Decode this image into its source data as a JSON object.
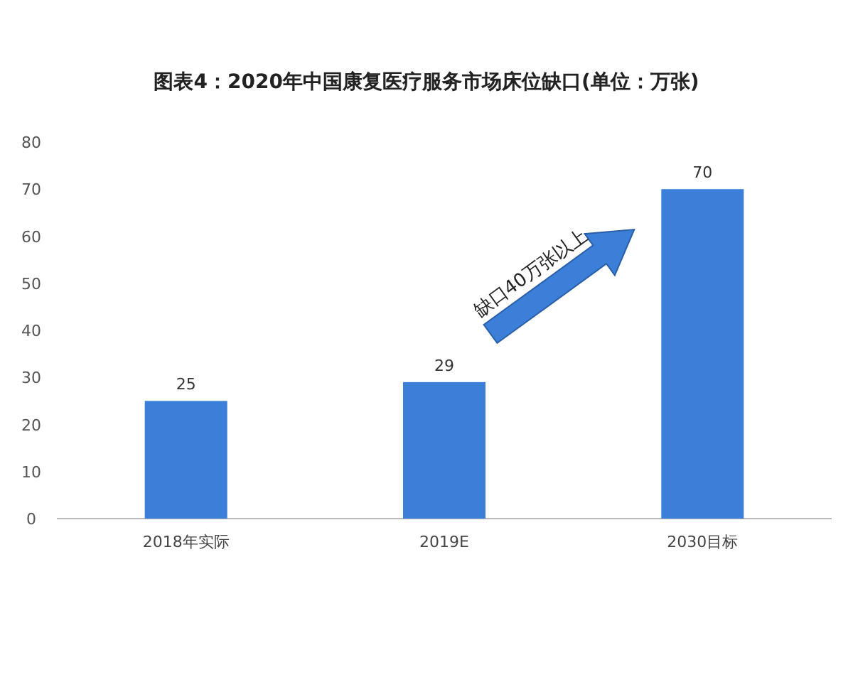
{
  "chart_data": {
    "type": "bar",
    "title": "图表4：2020年中国康复医疗服务市场床位缺口(单位：万张)",
    "categories": [
      "2018年实际",
      "2019E",
      "2030目标"
    ],
    "values": [
      25,
      29,
      70
    ],
    "color": "#3b7fd9",
    "ylim": [
      0,
      80
    ],
    "yticks": [
      0,
      10,
      20,
      30,
      40,
      50,
      60,
      70,
      80
    ],
    "data_labels": true,
    "grid": false,
    "annotations": [
      "缺口40万张以上"
    ]
  }
}
